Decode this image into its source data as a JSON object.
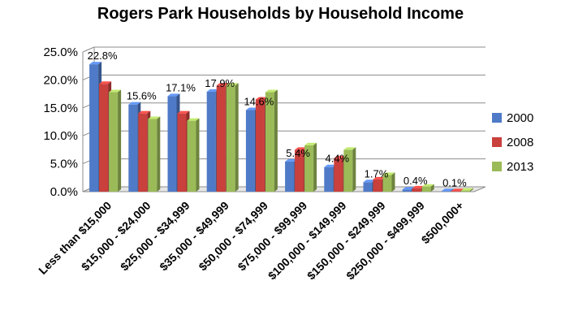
{
  "chart_data": {
    "type": "bar",
    "title": "Rogers Park Households by Household Income",
    "xlabel": "",
    "ylabel": "",
    "ylim": [
      0,
      25
    ],
    "y_ticks": [
      "0.0%",
      "5.0%",
      "10.0%",
      "15.0%",
      "20.0%",
      "25.0%"
    ],
    "grid": true,
    "legend_position": "right",
    "categories": [
      "Less than $15,000",
      "$15,000 - $24,000",
      "$25,000 - $34,999",
      "$35,000 - $49,999",
      "$50,000 - $74,999",
      "$75,000 - $99,999",
      "$100,000 - $149,999",
      "$150,000 - $249,999",
      "$250,000 - $499,999",
      "$500,000+"
    ],
    "series": [
      {
        "name": "2000",
        "color": "#4f7ac7",
        "values": [
          22.8,
          15.6,
          17.1,
          17.9,
          14.6,
          5.4,
          4.4,
          1.7,
          0.4,
          0.1
        ]
      },
      {
        "name": "2008",
        "color": "#c9403d",
        "values": [
          19.3,
          14.0,
          14.0,
          19.0,
          16.5,
          7.5,
          6.0,
          2.2,
          0.6,
          0.1
        ]
      },
      {
        "name": "2013",
        "color": "#9bbb59",
        "values": [
          17.8,
          13.0,
          12.7,
          19.0,
          17.8,
          8.3,
          7.5,
          3.0,
          0.9,
          0.2
        ]
      }
    ],
    "data_labels": [
      "22.8%",
      "15.6%",
      "17.1%",
      "17.9%",
      "14.6%",
      "5.4%",
      "4.4%",
      "1.7%",
      "0.4%",
      "0.1%"
    ]
  }
}
